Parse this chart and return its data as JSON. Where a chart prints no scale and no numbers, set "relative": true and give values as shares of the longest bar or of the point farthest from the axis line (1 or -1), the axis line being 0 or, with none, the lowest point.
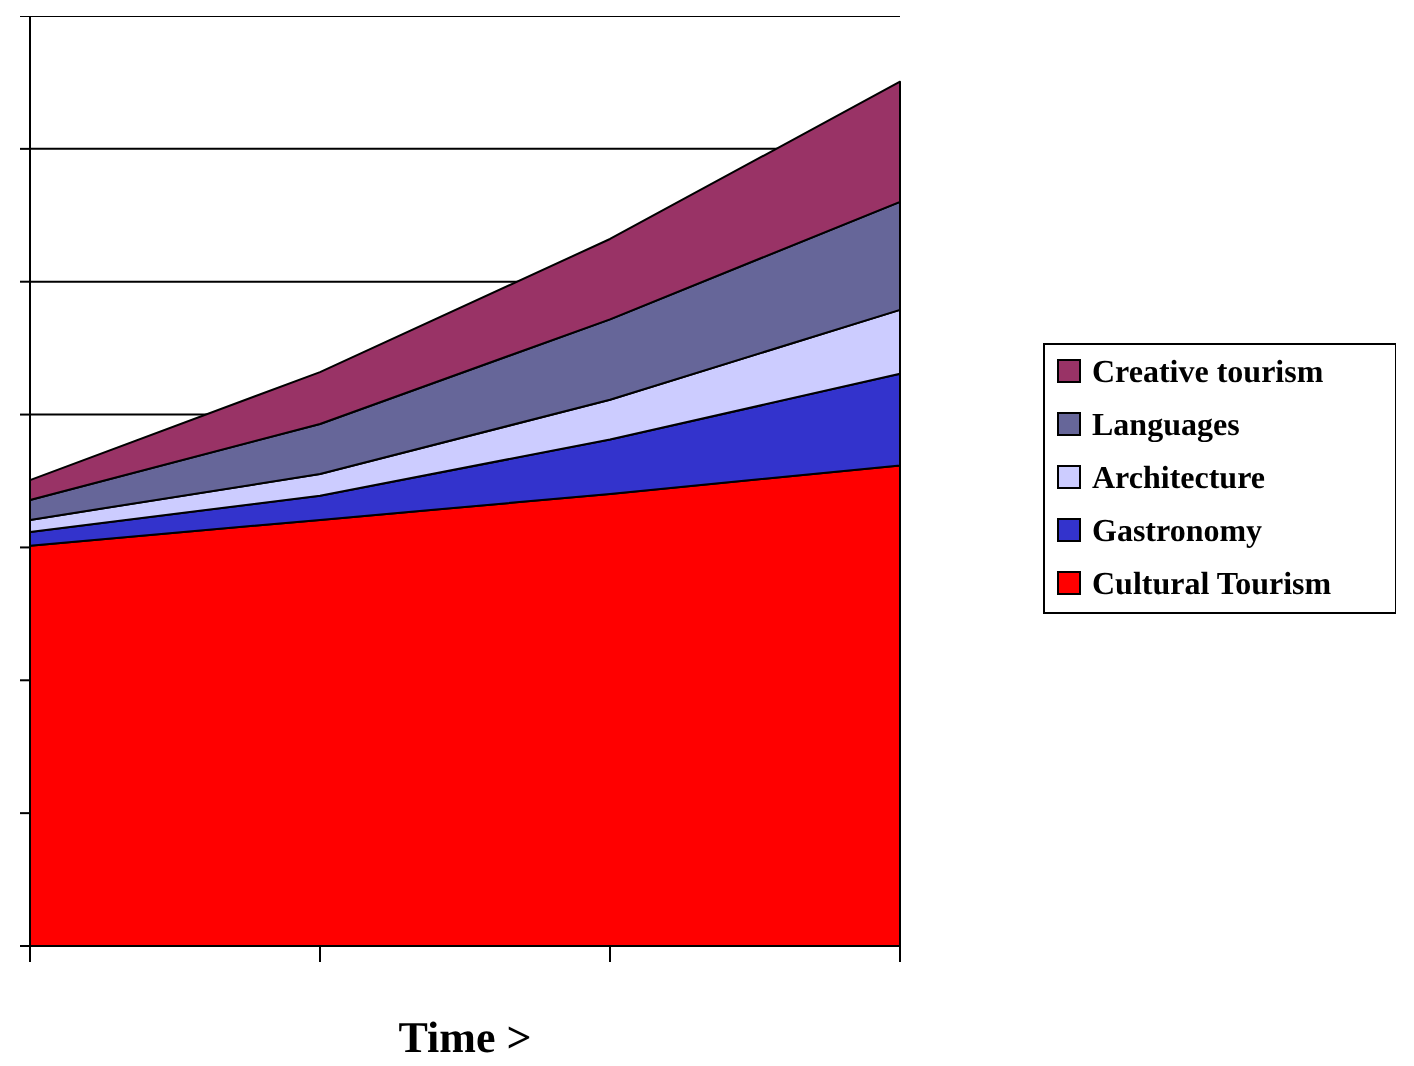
{
  "chart_data": {
    "type": "area",
    "stacked": true,
    "relative": true,
    "xlabel": "Time >",
    "categories": [
      null,
      null,
      null,
      null
    ],
    "series": [
      {
        "name": "Cultural Tourism",
        "color": "#ff0000",
        "values": [
          0.463,
          0.493,
          0.523,
          0.556
        ]
      },
      {
        "name": "Gastronomy",
        "color": "#3333cc",
        "values": [
          0.016,
          0.028,
          0.063,
          0.106
        ]
      },
      {
        "name": "Architecture",
        "color": "#ccccff",
        "values": [
          0.014,
          0.025,
          0.046,
          0.074
        ]
      },
      {
        "name": "Languages",
        "color": "#666699",
        "values": [
          0.023,
          0.058,
          0.093,
          0.125
        ]
      },
      {
        "name": "Creative tourism",
        "color": "#993366",
        "values": [
          0.023,
          0.06,
          0.093,
          0.139
        ]
      }
    ],
    "grid": "y",
    "legend": "right"
  }
}
